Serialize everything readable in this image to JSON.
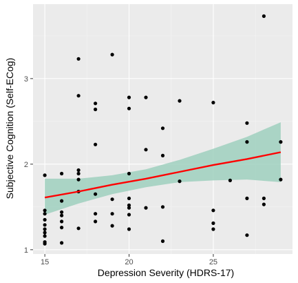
{
  "chart_data": {
    "type": "scatter",
    "title": "",
    "xlabel": "Depression Severity (HDRS-17)",
    "ylabel": "Subjective Cognition (Self-ECog)",
    "xlim": [
      14.3,
      29.7
    ],
    "ylim": [
      0.95,
      3.87
    ],
    "x_ticks": [
      15,
      20,
      25
    ],
    "y_ticks": [
      1,
      2,
      3
    ],
    "grid": true,
    "legend": "none",
    "colors": {
      "panel": "#ebebeb",
      "grid_major": "#ffffff",
      "grid_minor": "#f4f4f4",
      "points": "#000000",
      "fit_line": "#ff0000",
      "confidence_band": "#9fd0be"
    },
    "points": [
      {
        "x": 15,
        "y": 1.87
      },
      {
        "x": 15,
        "y": 1.46
      },
      {
        "x": 15,
        "y": 1.42
      },
      {
        "x": 15,
        "y": 1.35
      },
      {
        "x": 15,
        "y": 1.29
      },
      {
        "x": 15,
        "y": 1.24
      },
      {
        "x": 15,
        "y": 1.2
      },
      {
        "x": 15,
        "y": 1.16
      },
      {
        "x": 15,
        "y": 1.09
      },
      {
        "x": 15,
        "y": 1.07
      },
      {
        "x": 16,
        "y": 1.89
      },
      {
        "x": 16,
        "y": 1.57
      },
      {
        "x": 16,
        "y": 1.44
      },
      {
        "x": 16,
        "y": 1.4
      },
      {
        "x": 16,
        "y": 1.33
      },
      {
        "x": 16,
        "y": 1.26
      },
      {
        "x": 16,
        "y": 1.08
      },
      {
        "x": 17,
        "y": 3.23
      },
      {
        "x": 17,
        "y": 2.8
      },
      {
        "x": 17,
        "y": 1.93
      },
      {
        "x": 17,
        "y": 1.89
      },
      {
        "x": 17,
        "y": 1.82
      },
      {
        "x": 17,
        "y": 1.68
      },
      {
        "x": 17,
        "y": 1.25
      },
      {
        "x": 18,
        "y": 2.71
      },
      {
        "x": 18,
        "y": 2.64
      },
      {
        "x": 18,
        "y": 2.23
      },
      {
        "x": 18,
        "y": 1.65
      },
      {
        "x": 18,
        "y": 1.42
      },
      {
        "x": 18,
        "y": 1.33
      },
      {
        "x": 19,
        "y": 3.28
      },
      {
        "x": 19,
        "y": 1.59
      },
      {
        "x": 19,
        "y": 1.42
      },
      {
        "x": 19,
        "y": 1.28
      },
      {
        "x": 20,
        "y": 2.78
      },
      {
        "x": 20,
        "y": 2.65
      },
      {
        "x": 20,
        "y": 1.89
      },
      {
        "x": 20,
        "y": 1.6
      },
      {
        "x": 20,
        "y": 1.52
      },
      {
        "x": 20,
        "y": 1.49
      },
      {
        "x": 20,
        "y": 1.41
      },
      {
        "x": 20,
        "y": 1.24
      },
      {
        "x": 21,
        "y": 2.78
      },
      {
        "x": 21,
        "y": 2.17
      },
      {
        "x": 21,
        "y": 1.49
      },
      {
        "x": 22,
        "y": 2.42
      },
      {
        "x": 22,
        "y": 2.1
      },
      {
        "x": 22,
        "y": 1.5
      },
      {
        "x": 22,
        "y": 1.1
      },
      {
        "x": 23,
        "y": 2.74
      },
      {
        "x": 23,
        "y": 1.8
      },
      {
        "x": 25,
        "y": 2.72
      },
      {
        "x": 25,
        "y": 1.46
      },
      {
        "x": 25,
        "y": 1.31
      },
      {
        "x": 25,
        "y": 1.24
      },
      {
        "x": 26,
        "y": 1.81
      },
      {
        "x": 27,
        "y": 2.48
      },
      {
        "x": 27,
        "y": 2.26
      },
      {
        "x": 27,
        "y": 1.6
      },
      {
        "x": 27,
        "y": 1.17
      },
      {
        "x": 28,
        "y": 3.73
      },
      {
        "x": 28,
        "y": 1.6
      },
      {
        "x": 28,
        "y": 1.53
      },
      {
        "x": 29,
        "y": 2.26
      },
      {
        "x": 29,
        "y": 1.82
      }
    ],
    "fit": {
      "x": [
        15,
        17,
        19,
        21,
        23,
        25,
        27,
        29
      ],
      "y": [
        1.61,
        1.68,
        1.76,
        1.83,
        1.91,
        1.99,
        2.06,
        2.14
      ],
      "lower": [
        1.41,
        1.54,
        1.65,
        1.73,
        1.79,
        1.81,
        1.82,
        1.79
      ],
      "upper": [
        1.83,
        1.83,
        1.87,
        1.94,
        2.05,
        2.18,
        2.32,
        2.49
      ]
    }
  }
}
